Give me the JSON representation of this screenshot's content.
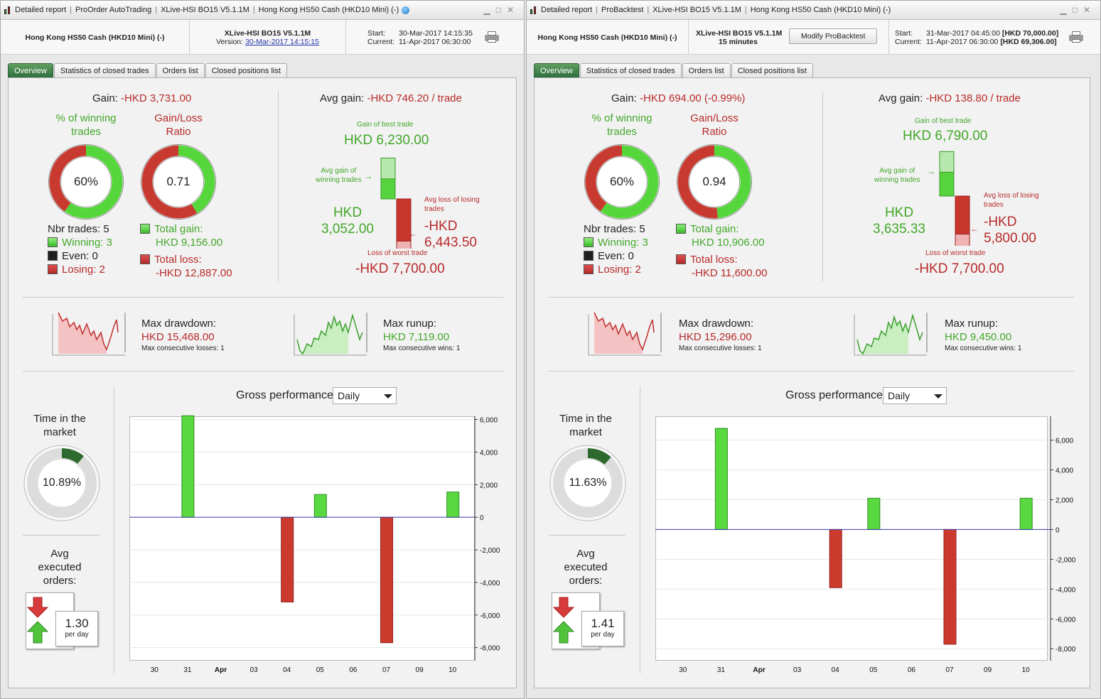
{
  "colors": {
    "green": "#43a72b",
    "red": "#b82a2a",
    "tab_active": "#3a7a45",
    "accent_link": "#2233aa"
  },
  "windows": [
    {
      "title": {
        "items": [
          "Detailed report",
          "ProOrder AutoTrading",
          "XLive-HSI BO15 V5.1.1M",
          "Hong Kong HS50 Cash (HKD10 Mini) (-)"
        ],
        "has_globe": true
      },
      "header": {
        "instrument": "Hong Kong HS50 Cash (HKD10 Mini) (-)",
        "system": "XLive-HSI BO15 V5.1.1M",
        "version_label": "Version:",
        "version_link": "30-Mar-2017 14:15:15",
        "start_label": "Start:",
        "start_value": "30-Mar-2017 14:15:35",
        "current_label": "Current:",
        "current_value": "11-Apr-2017 06:30:00"
      },
      "tabs": [
        "Overview",
        "Statistics of closed trades",
        "Orders list",
        "Closed positions list"
      ],
      "gain": {
        "label": "Gain:",
        "value": "-HKD 3,731.00"
      },
      "winning": {
        "title1": "% of winning",
        "title2": "trades",
        "value": "60%",
        "pct": 0.6
      },
      "ratio": {
        "title1": "Gain/Loss",
        "title2": "Ratio",
        "value": "0.71",
        "frac": 0.415
      },
      "trades": {
        "nbr": "Nbr trades: 5",
        "winning": "Winning: 3",
        "even": "Even: 0",
        "losing": "Losing: 2"
      },
      "totals": {
        "gain_label": "Total gain:",
        "gain_value": "HKD 9,156.00",
        "loss_label": "Total loss:",
        "loss_value": "-HKD 12,887.00"
      },
      "avg": {
        "label": "Avg gain:",
        "value": "-HKD 746.20 / trade",
        "best_label": "Gain of best trade",
        "best_value": "HKD 6,230.00",
        "avg_win_label1": "Avg gain of",
        "avg_win_label2": "winning trades",
        "avg_win_value1": "HKD",
        "avg_win_value2": "3,052.00",
        "avg_loss_label1": "Avg loss of losing",
        "avg_loss_label2": "trades",
        "avg_loss_value1": "-HKD",
        "avg_loss_value2": "6,443.50",
        "worst_label": "Loss of worst trade",
        "worst_value": "-HKD 7,700.00",
        "best": 6230,
        "avg_win": 3052,
        "avg_loss": 6443.5,
        "worst": 7700
      },
      "drawdown": {
        "label": "Max drawdown:",
        "value": "HKD 15,468.00",
        "sub": "Max consecutive losses: 1"
      },
      "runup": {
        "label": "Max runup:",
        "value": "HKD 7,119.00",
        "sub": "Max consecutive wins: 1"
      },
      "time_market": {
        "title1": "Time in the",
        "title2": "market",
        "value": "10.89%",
        "frac": 0.1089
      },
      "avg_orders": {
        "title1": "Avg",
        "title2": "executed",
        "title3": "orders:",
        "value": "1.30",
        "unit": "per day"
      },
      "perf": {
        "label": "Gross performance",
        "period": "Daily"
      },
      "chart_data": {
        "type": "bar",
        "title": "Gross performance",
        "categories": [
          "30",
          "31",
          "Apr",
          "03",
          "04",
          "05",
          "06",
          "07",
          "09",
          "10"
        ],
        "values": [
          0,
          6230,
          0,
          0,
          -5200,
          1400,
          0,
          -7700,
          0,
          1550
        ],
        "ylim": [
          -8800,
          6200
        ],
        "yticks": [
          6000,
          4000,
          2000,
          0,
          -2000,
          -4000,
          -6000,
          -8000
        ],
        "ytick_labels": [
          "6,000",
          "4,000",
          "2,000",
          "0",
          "-2,000",
          "-4,000",
          "-6,000",
          "-8,000"
        ]
      }
    },
    {
      "title": {
        "items": [
          "Detailed report",
          "ProBacktest",
          "XLive-HSI BO15 V5.1.1M",
          "Hong Kong HS50 Cash (HKD10 Mini) (-)"
        ],
        "has_globe": false
      },
      "header": {
        "instrument": "Hong Kong HS50 Cash (HKD10 Mini) (-)",
        "system": "XLive-HSI BO15 V5.1.1M",
        "timeframe": "15 minutes",
        "modify_button": "Modify ProBacktest",
        "start_label": "Start:",
        "start_value": "31-Mar-2017 04:45:00",
        "start_capital": "[HKD 70,000.00]",
        "current_label": "Current:",
        "current_value": "11-Apr-2017 06:30:00",
        "current_capital": "[HKD 69,306.00]"
      },
      "tabs": [
        "Overview",
        "Statistics of closed trades",
        "Orders list",
        "Closed positions list"
      ],
      "gain": {
        "label": "Gain:",
        "value": "-HKD 694.00 (-0.99%)"
      },
      "winning": {
        "title1": "% of winning",
        "title2": "trades",
        "value": "60%",
        "pct": 0.6
      },
      "ratio": {
        "title1": "Gain/Loss",
        "title2": "Ratio",
        "value": "0.94",
        "frac": 0.485
      },
      "trades": {
        "nbr": "Nbr trades: 5",
        "winning": "Winning: 3",
        "even": "Even: 0",
        "losing": "Losing: 2"
      },
      "totals": {
        "gain_label": "Total gain:",
        "gain_value": "HKD 10,906.00",
        "loss_label": "Total loss:",
        "loss_value": "-HKD 11,600.00"
      },
      "avg": {
        "label": "Avg gain:",
        "value": "-HKD 138.80 / trade",
        "best_label": "Gain of best trade",
        "best_value": "HKD 6,790.00",
        "avg_win_label1": "Avg gain of",
        "avg_win_label2": "winning trades",
        "avg_win_value1": "HKD",
        "avg_win_value2": "3,635.33",
        "avg_loss_label1": "Avg loss of losing",
        "avg_loss_label2": "trades",
        "avg_loss_value1": "-HKD",
        "avg_loss_value2": "5,800.00",
        "worst_label": "Loss of worst trade",
        "worst_value": "-HKD 7,700.00",
        "best": 6790,
        "avg_win": 3635.33,
        "avg_loss": 5800,
        "worst": 7700
      },
      "drawdown": {
        "label": "Max drawdown:",
        "value": "HKD 15,296.00",
        "sub": "Max consecutive losses: 1"
      },
      "runup": {
        "label": "Max runup:",
        "value": "HKD 9,450.00",
        "sub": "Max consecutive wins: 1"
      },
      "time_market": {
        "title1": "Time in the",
        "title2": "market",
        "value": "11.63%",
        "frac": 0.1163
      },
      "avg_orders": {
        "title1": "Avg",
        "title2": "executed",
        "title3": "orders:",
        "value": "1.41",
        "unit": "per day"
      },
      "perf": {
        "label": "Gross performance",
        "period": "Daily"
      },
      "chart_data": {
        "type": "bar",
        "title": "Gross performance",
        "categories": [
          "30",
          "31",
          "Apr",
          "03",
          "04",
          "05",
          "06",
          "07",
          "09",
          "10"
        ],
        "values": [
          0,
          6790,
          0,
          0,
          -3900,
          2100,
          0,
          -7700,
          0,
          2100
        ],
        "ylim": [
          -8800,
          7600
        ],
        "yticks": [
          6000,
          4000,
          2000,
          0,
          -2000,
          -4000,
          -6000,
          -8000
        ],
        "ytick_labels": [
          "6,000",
          "4,000",
          "2,000",
          "0",
          "-2,000",
          "-4,000",
          "-6,000",
          "-8,000"
        ]
      }
    }
  ]
}
